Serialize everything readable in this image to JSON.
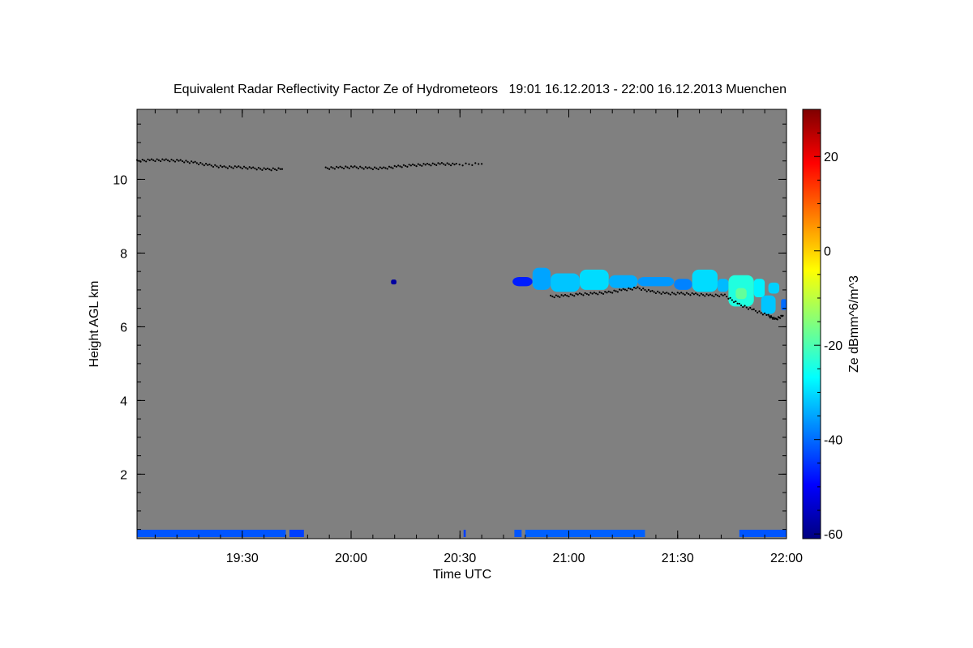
{
  "chart_data": {
    "type": "heatmap",
    "title": "Equivalent Radar Reflectivity Factor Ze of Hydrometeors   19:01 16.12.2013 - 22:00 16.12.2013 Muenchen",
    "xlabel": "Time UTC",
    "ylabel": "Height AGL km",
    "colorbar_label": "Ze dBmm^6/m^3",
    "x_tick_labels": [
      "19:30",
      "20:00",
      "20:30",
      "21:00",
      "21:30",
      "22:00"
    ],
    "x_tick_values_min": [
      29,
      59,
      89,
      119,
      149,
      179
    ],
    "x_range_min": [
      0,
      179
    ],
    "x_minor_step_min": 6,
    "y_tick_labels": [
      "2",
      "4",
      "6",
      "8",
      "10"
    ],
    "y_tick_values": [
      2,
      4,
      6,
      8,
      10
    ],
    "y_range_km": [
      0.25,
      11.9
    ],
    "y_minor_step_km": 0.5,
    "colorbar_tick_labels": [
      "20",
      "0",
      "-20",
      "-40",
      "-60"
    ],
    "colorbar_tick_values": [
      20,
      0,
      -20,
      -40,
      -60
    ],
    "colorbar_range_dbz": [
      -61,
      30
    ],
    "colorbar_colors": [
      "#00007f",
      "#0000ff",
      "#007fff",
      "#00ffff",
      "#7fff7f",
      "#ffff00",
      "#ff7f00",
      "#ff0000",
      "#7f0000"
    ],
    "background_color": "#808080",
    "echoes": [
      {
        "t0": 103.5,
        "t1": 109,
        "h0": 7.1,
        "h1": 7.35,
        "ze": -47
      },
      {
        "t0": 109,
        "t1": 114,
        "h0": 7.0,
        "h1": 7.6,
        "ze": -35
      },
      {
        "t0": 114,
        "t1": 122,
        "h0": 6.95,
        "h1": 7.45,
        "ze": -32
      },
      {
        "t0": 122,
        "t1": 130,
        "h0": 7.0,
        "h1": 7.55,
        "ze": -30
      },
      {
        "t0": 130,
        "t1": 138,
        "h0": 7.05,
        "h1": 7.4,
        "ze": -34
      },
      {
        "t0": 138,
        "t1": 148,
        "h0": 7.1,
        "h1": 7.35,
        "ze": -36
      },
      {
        "t0": 148,
        "t1": 153,
        "h0": 7.0,
        "h1": 7.3,
        "ze": -38
      },
      {
        "t0": 153,
        "t1": 160,
        "h0": 6.95,
        "h1": 7.55,
        "ze": -30
      },
      {
        "t0": 160,
        "t1": 163,
        "h0": 6.95,
        "h1": 7.3,
        "ze": -33
      },
      {
        "t0": 163,
        "t1": 170,
        "h0": 6.55,
        "h1": 7.4,
        "ze": -24
      },
      {
        "t0": 165,
        "t1": 168,
        "h0": 6.75,
        "h1": 7.05,
        "ze": -18
      },
      {
        "t0": 170,
        "t1": 173,
        "h0": 6.8,
        "h1": 7.3,
        "ze": -28
      },
      {
        "t0": 172,
        "t1": 176,
        "h0": 6.35,
        "h1": 6.85,
        "ze": -32
      },
      {
        "t0": 174,
        "t1": 177,
        "h0": 6.9,
        "h1": 7.2,
        "ze": -31
      },
      {
        "t0": 177.5,
        "t1": 179,
        "h0": 6.45,
        "h1": 6.75,
        "ze": -40
      },
      {
        "t0": 70,
        "t1": 71.5,
        "h0": 7.15,
        "h1": 7.28,
        "ze": -58
      }
    ],
    "surface_clutter": [
      {
        "t0": 0,
        "t1": 41,
        "ze": -42
      },
      {
        "t0": 42,
        "t1": 46,
        "ze": -44
      },
      {
        "t0": 90,
        "t1": 90.6,
        "ze": -44
      },
      {
        "t0": 104,
        "t1": 106,
        "ze": -42
      },
      {
        "t0": 107,
        "t1": 140,
        "ze": -41
      },
      {
        "t0": 166,
        "t1": 179,
        "ze": -42
      }
    ],
    "cloud_top_line": [
      [
        0,
        10.5
      ],
      [
        4,
        10.52
      ],
      [
        8,
        10.52
      ],
      [
        12,
        10.5
      ],
      [
        16,
        10.45
      ],
      [
        20,
        10.38
      ],
      [
        24,
        10.33
      ],
      [
        28,
        10.33
      ],
      [
        32,
        10.3
      ],
      [
        36,
        10.27
      ],
      [
        40,
        10.28
      ],
      [
        52,
        10.3
      ],
      [
        56,
        10.32
      ],
      [
        60,
        10.33
      ],
      [
        64,
        10.3
      ],
      [
        68,
        10.3
      ],
      [
        72,
        10.35
      ],
      [
        76,
        10.38
      ],
      [
        80,
        10.4
      ],
      [
        84,
        10.42
      ],
      [
        88,
        10.4
      ],
      [
        95,
        10.42
      ],
      [
        114,
        6.82
      ],
      [
        118,
        6.84
      ],
      [
        122,
        6.88
      ],
      [
        126,
        6.9
      ],
      [
        130,
        6.93
      ],
      [
        134,
        7.0
      ],
      [
        138,
        7.05
      ],
      [
        142,
        6.95
      ],
      [
        146,
        6.9
      ],
      [
        150,
        6.9
      ],
      [
        154,
        6.88
      ],
      [
        158,
        6.85
      ],
      [
        162,
        6.85
      ],
      [
        166,
        6.6
      ],
      [
        170,
        6.45
      ],
      [
        174,
        6.3
      ],
      [
        176,
        6.2
      ],
      [
        178,
        6.3
      ]
    ]
  }
}
